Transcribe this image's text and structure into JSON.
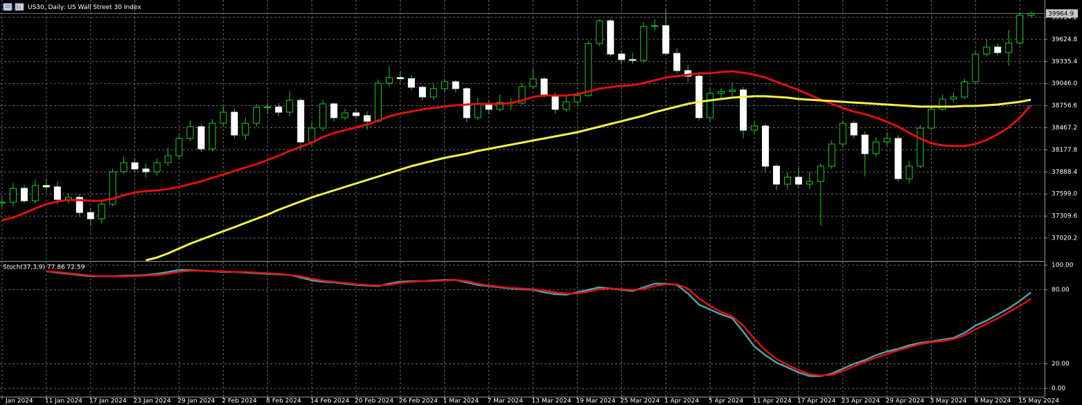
{
  "chart_data": [
    {
      "type": "candlestick",
      "title": "US30, Daily:  US Wall Street 30 Index",
      "categories": [
        "Jan 2024",
        null,
        null,
        null,
        "11 Jan 2024",
        null,
        null,
        null,
        "17 Jan 2024",
        null,
        null,
        null,
        "23 Jan 2024",
        null,
        null,
        null,
        "29 Jan 2024",
        null,
        null,
        null,
        "2 Feb 2024",
        null,
        null,
        null,
        "8 Feb 2024",
        null,
        null,
        null,
        "14 Feb 2024",
        null,
        null,
        null,
        "20 Feb 2024",
        null,
        null,
        null,
        "26 Feb 2024",
        null,
        null,
        null,
        "1 Mar 2024",
        null,
        null,
        null,
        "7 Mar 2024",
        null,
        null,
        null,
        "13 Mar 2024",
        null,
        null,
        null,
        "19 Mar 2024",
        null,
        null,
        null,
        "25 Mar 2024",
        null,
        null,
        null,
        "1 Apr 2024",
        null,
        null,
        null,
        "5 Apr 2024",
        null,
        null,
        null,
        "11 Apr 2024",
        null,
        null,
        null,
        "17 Apr 2024",
        null,
        null,
        null,
        "23 Apr 2024",
        null,
        null,
        null,
        "29 Apr 2024",
        null,
        null,
        null,
        "3 May 2024",
        null,
        null,
        null,
        "9 May 2024",
        null,
        null,
        null,
        "15 May 2024",
        null
      ],
      "open": [
        37480,
        37492,
        37673,
        37510,
        37710,
        37692,
        37528,
        37555,
        37356,
        37274,
        37465,
        37891,
        38009,
        37927,
        37891,
        38009,
        38100,
        38327,
        38481,
        38191,
        38526,
        38671,
        38372,
        38526,
        38735,
        38740,
        38671,
        38826,
        38281,
        38463,
        38780,
        38599,
        38662,
        38626,
        38553,
        39052,
        39125,
        39110,
        38998,
        38871,
        38980,
        39070,
        38980,
        38599,
        38780,
        38708,
        38798,
        38790,
        39007,
        39107,
        38898,
        38708,
        38807,
        38889,
        39570,
        39869,
        39433,
        39361,
        39350,
        39796,
        39805,
        39442,
        39216,
        39143,
        38599,
        38916,
        38943,
        38962,
        38435,
        38490,
        37964,
        37728,
        37819,
        37728,
        37764,
        37964,
        38254,
        38526,
        38372,
        38127,
        38281,
        38327,
        37800,
        37964,
        38463,
        38708,
        38844,
        38871,
        39070,
        39433,
        39524,
        39452,
        39578,
        39941
      ],
      "high": [
        37560,
        37740,
        37720,
        37790,
        37800,
        37760,
        37610,
        37590,
        37420,
        37520,
        37930,
        38090,
        38060,
        38000,
        38060,
        38210,
        38370,
        38560,
        38520,
        38580,
        38760,
        38720,
        38600,
        38780,
        38800,
        38790,
        38950,
        38860,
        38540,
        38830,
        38800,
        38720,
        38700,
        38680,
        39100,
        39270,
        39200,
        39160,
        39020,
        39040,
        39110,
        39090,
        39000,
        38860,
        38830,
        38900,
        38850,
        39050,
        39240,
        39130,
        38930,
        38880,
        38930,
        39600,
        39890,
        39900,
        39470,
        39450,
        39850,
        39890,
        40010,
        39510,
        39290,
        39200,
        38980,
        38990,
        39060,
        39000,
        38560,
        38530,
        37990,
        37880,
        37940,
        37890,
        38000,
        38300,
        38560,
        38560,
        38420,
        38340,
        38410,
        38370,
        38030,
        38500,
        38740,
        38900,
        38930,
        39110,
        39470,
        39620,
        39570,
        39750,
        39980,
        39990
      ],
      "low": [
        37420,
        37440,
        37480,
        37470,
        37640,
        37460,
        37470,
        37300,
        37190,
        37210,
        37440,
        37860,
        37880,
        37820,
        37840,
        37970,
        38060,
        38290,
        38150,
        38160,
        38480,
        38330,
        38310,
        38480,
        38650,
        38620,
        38620,
        38170,
        38230,
        38420,
        38550,
        38560,
        38580,
        38440,
        38540,
        39010,
        39060,
        38960,
        38820,
        38830,
        38940,
        38930,
        38540,
        38570,
        38640,
        38680,
        38700,
        38760,
        38980,
        38860,
        38650,
        38680,
        38750,
        38870,
        39540,
        39400,
        39300,
        39300,
        39320,
        39740,
        39420,
        39180,
        39060,
        38560,
        38560,
        38850,
        38880,
        38330,
        38380,
        37880,
        37650,
        37660,
        37680,
        37660,
        37190,
        37930,
        38210,
        38330,
        37830,
        38090,
        38230,
        37760,
        37740,
        37940,
        38440,
        38690,
        38800,
        38850,
        39040,
        39400,
        39420,
        39280,
        39560,
        39920
      ],
      "close": [
        37492,
        37673,
        37510,
        37710,
        37692,
        37528,
        37555,
        37356,
        37274,
        37465,
        37891,
        38009,
        37927,
        37891,
        38009,
        38100,
        38327,
        38481,
        38191,
        38526,
        38671,
        38372,
        38526,
        38735,
        38740,
        38671,
        38826,
        38281,
        38463,
        38780,
        38599,
        38662,
        38626,
        38553,
        39052,
        39125,
        39110,
        38998,
        38871,
        38980,
        39070,
        38980,
        38599,
        38780,
        38708,
        38798,
        38790,
        39007,
        39107,
        38898,
        38708,
        38807,
        38889,
        39570,
        39869,
        39433,
        39361,
        39350,
        39796,
        39805,
        39442,
        39216,
        39143,
        38599,
        38916,
        38943,
        38962,
        38435,
        38490,
        37964,
        37728,
        37819,
        37728,
        37764,
        37964,
        38254,
        38526,
        38372,
        38127,
        38281,
        38327,
        37800,
        37964,
        38463,
        38708,
        38844,
        38871,
        39070,
        39433,
        39524,
        39452,
        39578,
        39941,
        39965
      ],
      "up_color": "#1fcf1f",
      "down_color": "#ffffff",
      "moving_averages": [
        {
          "color": "#e01010",
          "values": [
            37256,
            37292,
            37347,
            37410,
            37465,
            37501,
            37519,
            37519,
            37510,
            37510,
            37537,
            37583,
            37619,
            37637,
            37646,
            37664,
            37692,
            37728,
            37764,
            37810,
            37855,
            37901,
            37947,
            37991,
            38045,
            38100,
            38163,
            38218,
            38272,
            38345,
            38399,
            38435,
            38472,
            38508,
            38562,
            38617,
            38653,
            38680,
            38708,
            38726,
            38744,
            38762,
            38771,
            38780,
            38780,
            38780,
            38789,
            38826,
            38871,
            38889,
            38889,
            38889,
            38907,
            38943,
            38980,
            38998,
            39016,
            39025,
            39052,
            39089,
            39125,
            39143,
            39161,
            39180,
            39180,
            39198,
            39207,
            39189,
            39161,
            39125,
            39070,
            39016,
            38962,
            38898,
            38835,
            38780,
            38726,
            38680,
            38644,
            38599,
            38544,
            38481,
            38399,
            38327,
            38263,
            38236,
            38227,
            38227,
            38254,
            38308,
            38381,
            38472,
            38599,
            38762
          ]
        },
        {
          "color": "#f2f24a",
          "values": [
            null,
            null,
            null,
            null,
            null,
            null,
            null,
            null,
            null,
            null,
            null,
            null,
            null,
            36730,
            36766,
            36821,
            36884,
            36948,
            37002,
            37057,
            37111,
            37165,
            37220,
            37274,
            37329,
            37392,
            37447,
            37501,
            37555,
            37601,
            37646,
            37692,
            37737,
            37782,
            37828,
            37873,
            37919,
            37964,
            38000,
            38036,
            38073,
            38100,
            38127,
            38163,
            38191,
            38218,
            38245,
            38272,
            38300,
            38327,
            38354,
            38381,
            38408,
            38445,
            38481,
            38517,
            38553,
            38590,
            38626,
            38671,
            38708,
            38744,
            38780,
            38807,
            38826,
            38844,
            38862,
            38871,
            38880,
            38880,
            38871,
            38862,
            38844,
            38835,
            38826,
            38817,
            38807,
            38798,
            38789,
            38780,
            38771,
            38762,
            38753,
            38744,
            38744,
            38744,
            38744,
            38753,
            38753,
            38762,
            38771,
            38789,
            38807,
            38835
          ]
        }
      ],
      "last_price": 39964.9,
      "ylim": [
        36730,
        40123
      ],
      "yticks": [
        39914.2,
        39624.8,
        39335.4,
        {
          "value": 39046,
          "label": "39046.0"
        },
        38756.6,
        38467.2,
        38177.8,
        37888.4,
        {
          "value": 37599,
          "label": "37599.0"
        },
        37309.6,
        37020.2
      ],
      "grid": true
    },
    {
      "type": "line",
      "title": "Stoch(37,3,9) 77.86 72.59",
      "series": [
        {
          "color": "#4fa3a8",
          "values": [
            null,
            null,
            null,
            null,
            95,
            94,
            93,
            92,
            91,
            91,
            91,
            91.5,
            91.5,
            92,
            93,
            94.5,
            96,
            96,
            95.5,
            95,
            94.5,
            94.5,
            94,
            93.5,
            93,
            92.5,
            92,
            90,
            87.6,
            86.5,
            86,
            85,
            84,
            83.5,
            83,
            85,
            86.5,
            87,
            87,
            87.5,
            88,
            88,
            86,
            84,
            83,
            82,
            81,
            80.5,
            80,
            78,
            76.5,
            76,
            78,
            80,
            82,
            81,
            80,
            79,
            82,
            85,
            85,
            84,
            77,
            68,
            64,
            60,
            57,
            46,
            34,
            27,
            21,
            17,
            13,
            10,
            10,
            12,
            16,
            20,
            23,
            27,
            30,
            32,
            35,
            37,
            38,
            39.5,
            41,
            45,
            51,
            55,
            60,
            65,
            71,
            77.86
          ]
        },
        {
          "color": "#e01010",
          "values": [
            null,
            null,
            null,
            null,
            95,
            94.5,
            93.5,
            92.5,
            91.5,
            91,
            91,
            91,
            91,
            91.5,
            92,
            93,
            94.5,
            95.5,
            95.5,
            95,
            95,
            94.5,
            94.5,
            94,
            93.5,
            93,
            92,
            91,
            89,
            87.5,
            86.5,
            85.5,
            84.5,
            84,
            83.5,
            84,
            85.5,
            86.5,
            87,
            87,
            87.5,
            88,
            87,
            85,
            83.5,
            82.5,
            81.5,
            81,
            80.5,
            79.5,
            78,
            77,
            77,
            78.5,
            80.5,
            81,
            80.5,
            80,
            80.5,
            83,
            84.5,
            84.5,
            81,
            73,
            67,
            62,
            58.5,
            51,
            40,
            31,
            24,
            19,
            15,
            11.5,
            10.5,
            11,
            14,
            18,
            21.5,
            25,
            28,
            31,
            33.5,
            36,
            37.5,
            38.5,
            40,
            43,
            48,
            52.5,
            57,
            62,
            67,
            72.59
          ]
        }
      ],
      "ylim": [
        -6.7,
        102.8
      ],
      "yticks": [
        {
          "value": 100,
          "label": "100.00"
        },
        {
          "value": 80,
          "label": "80.00"
        },
        {
          "value": 20,
          "label": "20.00"
        },
        {
          "value": 0,
          "label": "0.00"
        }
      ],
      "grid": true
    }
  ]
}
